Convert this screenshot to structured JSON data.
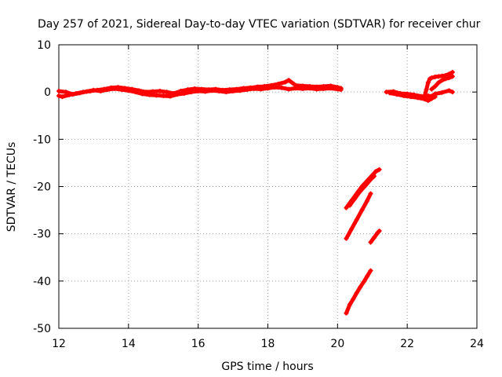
{
  "chart_data": {
    "type": "scatter",
    "title": "Day 257 of 2021, Sidereal Day-to-day VTEC variation (SDTVAR) for receiver chur",
    "xlabel": "GPS time / hours",
    "ylabel": "SDTVAR / TECUs",
    "xlim": [
      12,
      24
    ],
    "ylim": [
      -50,
      10
    ],
    "xticks": [
      "12",
      "14",
      "16",
      "18",
      "20",
      "22",
      "24"
    ],
    "yticks": [
      "10",
      "0",
      "-10",
      "-20",
      "-30",
      "-40",
      "-50"
    ],
    "grid": true,
    "color": "#ff0000",
    "series": [
      {
        "values": [
          [
            12.0,
            -0.8
          ],
          [
            12.1,
            -1.0
          ],
          [
            12.3,
            -0.6
          ],
          [
            12.5,
            -0.3
          ],
          [
            12.7,
            0.0
          ],
          [
            12.9,
            0.2
          ],
          [
            13.1,
            0.4
          ],
          [
            13.3,
            0.6
          ],
          [
            13.5,
            0.9
          ],
          [
            13.7,
            1.0
          ],
          [
            13.9,
            0.8
          ],
          [
            14.1,
            0.6
          ],
          [
            14.3,
            0.3
          ],
          [
            14.5,
            0.0
          ],
          [
            14.7,
            0.1
          ],
          [
            14.9,
            0.2
          ],
          [
            15.1,
            0.0
          ],
          [
            15.3,
            -0.3
          ],
          [
            15.5,
            0.2
          ],
          [
            15.7,
            0.5
          ],
          [
            15.9,
            0.7
          ],
          [
            16.1,
            0.6
          ],
          [
            16.3,
            0.5
          ],
          [
            16.5,
            0.6
          ],
          [
            16.7,
            0.4
          ],
          [
            16.9,
            0.5
          ],
          [
            17.1,
            0.6
          ],
          [
            17.3,
            0.8
          ],
          [
            17.5,
            0.9
          ],
          [
            17.7,
            1.1
          ],
          [
            17.9,
            1.2
          ],
          [
            18.1,
            1.4
          ],
          [
            18.3,
            1.7
          ],
          [
            18.5,
            2.1
          ],
          [
            18.6,
            2.5
          ],
          [
            18.8,
            1.4
          ],
          [
            19.0,
            1.3
          ],
          [
            19.2,
            1.2
          ],
          [
            19.4,
            1.1
          ],
          [
            19.6,
            1.2
          ],
          [
            19.8,
            1.3
          ],
          [
            20.0,
            1.0
          ],
          [
            20.1,
            0.8
          ]
        ]
      },
      {
        "values": [
          [
            12.0,
            0.2
          ],
          [
            12.2,
            0.0
          ],
          [
            12.4,
            -0.5
          ],
          [
            12.6,
            -0.2
          ],
          [
            12.8,
            0.1
          ],
          [
            13.0,
            0.4
          ],
          [
            13.2,
            0.2
          ],
          [
            13.4,
            0.5
          ],
          [
            13.6,
            0.7
          ],
          [
            13.8,
            0.5
          ],
          [
            14.0,
            0.3
          ],
          [
            14.2,
            0.0
          ],
          [
            14.4,
            -0.4
          ],
          [
            14.6,
            -0.6
          ],
          [
            14.8,
            -0.7
          ],
          [
            15.0,
            -0.8
          ],
          [
            15.2,
            -0.9
          ],
          [
            15.4,
            -0.5
          ],
          [
            15.6,
            -0.3
          ],
          [
            15.8,
            0.0
          ],
          [
            16.0,
            0.2
          ],
          [
            16.2,
            0.1
          ],
          [
            16.4,
            0.3
          ],
          [
            16.6,
            0.2
          ],
          [
            16.8,
            0.0
          ],
          [
            17.0,
            0.2
          ],
          [
            17.2,
            0.3
          ],
          [
            17.4,
            0.5
          ],
          [
            17.6,
            0.7
          ],
          [
            17.8,
            0.6
          ],
          [
            18.0,
            0.8
          ],
          [
            18.2,
            1.0
          ],
          [
            18.4,
            0.9
          ],
          [
            18.6,
            0.6
          ],
          [
            18.8,
            0.8
          ],
          [
            19.0,
            0.7
          ],
          [
            19.2,
            0.8
          ],
          [
            19.4,
            0.6
          ],
          [
            19.6,
            0.7
          ],
          [
            19.8,
            0.8
          ],
          [
            20.0,
            0.6
          ],
          [
            20.1,
            0.5
          ]
        ]
      },
      {
        "values": [
          [
            21.4,
            0.0
          ],
          [
            21.6,
            0.1
          ],
          [
            21.8,
            -0.3
          ],
          [
            22.0,
            -0.4
          ],
          [
            22.2,
            -0.6
          ],
          [
            22.4,
            -0.9
          ],
          [
            22.5,
            -1.0
          ],
          [
            22.6,
            -0.8
          ],
          [
            22.7,
            -0.9
          ],
          [
            22.8,
            -0.4
          ],
          [
            23.0,
            -0.1
          ],
          [
            23.2,
            0.3
          ],
          [
            23.3,
            0.0
          ]
        ]
      },
      {
        "values": [
          [
            21.5,
            -0.2
          ],
          [
            21.7,
            -0.5
          ],
          [
            21.9,
            -0.8
          ],
          [
            22.1,
            -1.0
          ],
          [
            22.3,
            -1.2
          ],
          [
            22.5,
            -1.5
          ],
          [
            22.6,
            -1.8
          ],
          [
            22.7,
            -1.4
          ],
          [
            22.8,
            -1.0
          ]
        ]
      },
      {
        "values": [
          [
            22.5,
            -0.8
          ],
          [
            22.55,
            0.5
          ],
          [
            22.6,
            2.0
          ],
          [
            22.65,
            2.8
          ],
          [
            22.7,
            3.0
          ],
          [
            22.8,
            3.2
          ],
          [
            22.9,
            3.3
          ],
          [
            23.0,
            3.4
          ],
          [
            23.1,
            3.5
          ],
          [
            23.2,
            3.8
          ],
          [
            23.3,
            4.2
          ]
        ]
      },
      {
        "values": [
          [
            22.7,
            0.6
          ],
          [
            22.8,
            1.2
          ],
          [
            22.9,
            2.0
          ],
          [
            23.0,
            2.5
          ],
          [
            23.1,
            2.8
          ],
          [
            23.2,
            3.0
          ],
          [
            23.3,
            3.3
          ]
        ]
      },
      {
        "values": [
          [
            20.25,
            -24.5
          ],
          [
            20.4,
            -23.0
          ],
          [
            20.55,
            -21.5
          ],
          [
            20.7,
            -20.0
          ],
          [
            20.85,
            -18.8
          ],
          [
            21.0,
            -17.6
          ],
          [
            21.1,
            -16.8
          ],
          [
            21.2,
            -16.4
          ]
        ]
      },
      {
        "values": [
          [
            20.35,
            -24.0
          ],
          [
            20.5,
            -22.5
          ],
          [
            20.65,
            -21.0
          ],
          [
            20.8,
            -19.8
          ],
          [
            20.95,
            -18.5
          ],
          [
            21.05,
            -17.8
          ]
        ]
      },
      {
        "values": [
          [
            20.25,
            -31.0
          ],
          [
            20.4,
            -29.0
          ],
          [
            20.55,
            -27.0
          ],
          [
            20.7,
            -25.0
          ],
          [
            20.85,
            -23.0
          ],
          [
            20.95,
            -21.5
          ]
        ]
      },
      {
        "values": [
          [
            20.95,
            -31.8
          ],
          [
            21.05,
            -30.8
          ],
          [
            21.15,
            -29.8
          ],
          [
            21.2,
            -29.4
          ]
        ]
      },
      {
        "values": [
          [
            20.25,
            -46.8
          ],
          [
            20.35,
            -45.0
          ],
          [
            20.45,
            -43.8
          ],
          [
            20.55,
            -42.5
          ],
          [
            20.65,
            -41.3
          ],
          [
            20.75,
            -40.2
          ],
          [
            20.85,
            -39.0
          ],
          [
            20.95,
            -37.8
          ]
        ]
      }
    ]
  }
}
